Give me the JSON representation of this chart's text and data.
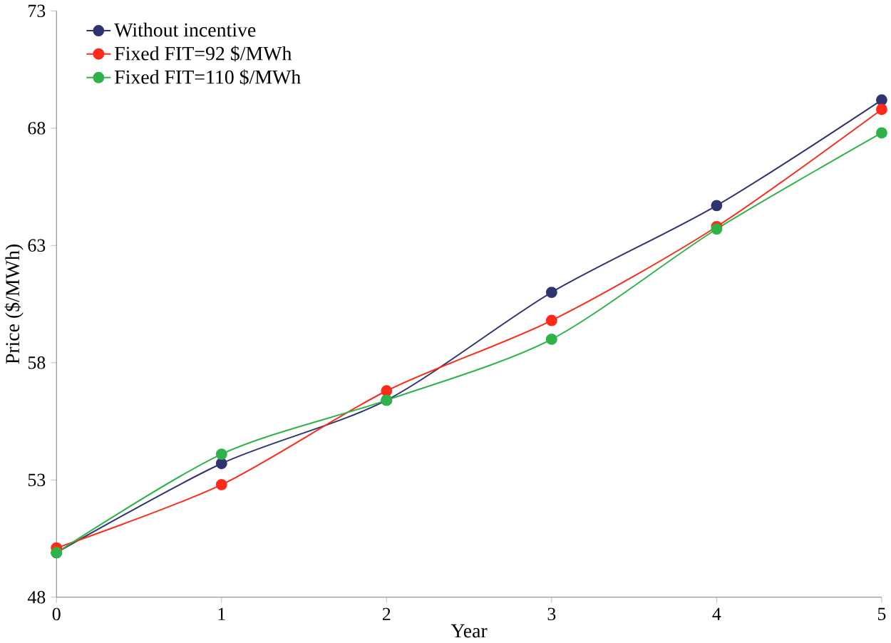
{
  "chart_data": {
    "type": "line",
    "xlabel": "Year",
    "ylabel": "Price ($/MWh)",
    "x": [
      0,
      1,
      2,
      3,
      4,
      5
    ],
    "series": [
      {
        "name": "Without incentive",
        "color": "#2e3470",
        "values": [
          49.9,
          53.7,
          56.4,
          61.0,
          64.7,
          69.2
        ]
      },
      {
        "name": "Fixed FIT=92 $/MWh",
        "color": "#ff2a1a",
        "values": [
          50.1,
          52.8,
          56.8,
          59.8,
          63.8,
          68.8
        ]
      },
      {
        "name": "Fixed FIT=110 $/MWh",
        "color": "#2eb34a",
        "values": [
          49.9,
          54.1,
          56.4,
          59.0,
          63.7,
          67.8
        ]
      }
    ],
    "xlim": [
      0,
      5
    ],
    "xticks": [
      0,
      1,
      2,
      3,
      4,
      5
    ],
    "ylim": [
      48,
      73
    ],
    "yticks": [
      48,
      53,
      58,
      63,
      68,
      73
    ],
    "legend": "top left",
    "grid": false,
    "marker": "circle",
    "line_style": "solid"
  }
}
